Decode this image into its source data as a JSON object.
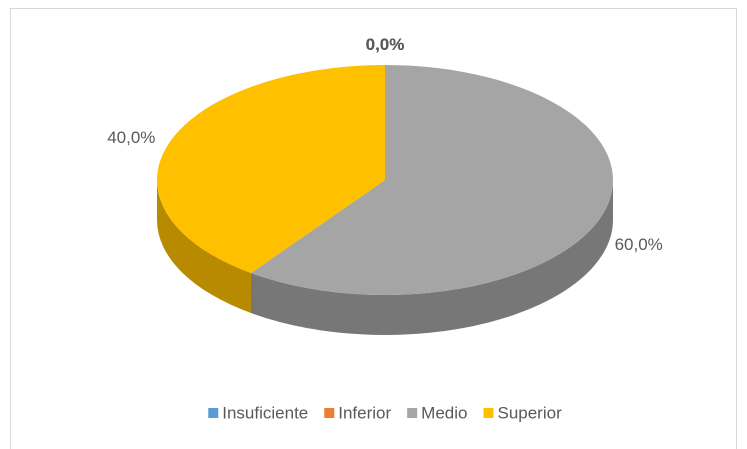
{
  "chart_data": {
    "type": "pie",
    "categories": [
      "Insuficiente",
      "Inferior",
      "Medio",
      "Superior"
    ],
    "values": [
      0,
      0,
      60,
      40
    ],
    "value_labels": [
      "0,0%",
      "0,0%",
      "60,0%",
      "40,0%"
    ],
    "colors": [
      "#5b9bd5",
      "#ed7d31",
      "#a5a5a5",
      "#ffc000"
    ],
    "legend": "bottom"
  }
}
